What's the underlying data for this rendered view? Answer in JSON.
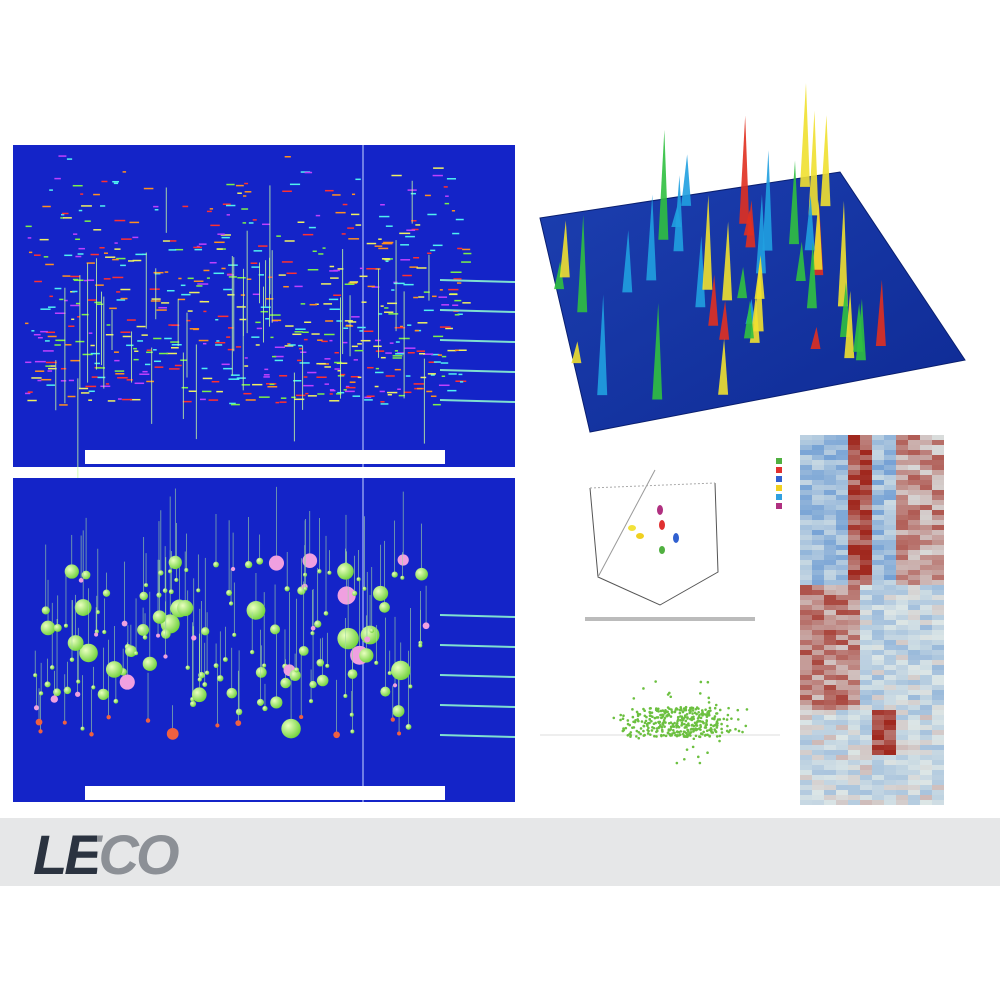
{
  "logo": "LECO"
}
